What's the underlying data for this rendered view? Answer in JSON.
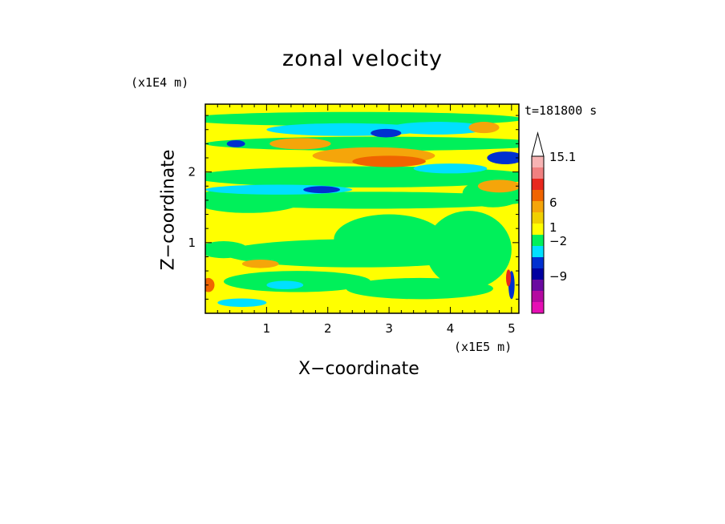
{
  "chart_data": {
    "type": "heatmap",
    "title": "zonal velocity",
    "xlabel": "X−coordinate",
    "ylabel": "Z−coordinate",
    "x_unit_label": "(x1E5 m)",
    "y_unit_label": "(x1E4 m)",
    "time_label": "t=181800 s",
    "xlim": [
      0,
      5.12
    ],
    "ylim": [
      0,
      2.96
    ],
    "x_ticks": [
      "1",
      "2",
      "3",
      "4",
      "5"
    ],
    "y_ticks": [
      "1",
      "2"
    ],
    "colorbar": {
      "labels": [
        "15.1",
        "6",
        "1",
        "−2",
        "−9"
      ],
      "colors": [
        "#f7b3b3",
        "#f08080",
        "#e8281e",
        "#f06400",
        "#f5a50a",
        "#f0d000",
        "#ffff00",
        "#00f05a",
        "#00e0ff",
        "#0030d0",
        "#0000a0",
        "#6a0aa0",
        "#b40aa0",
        "#e60fb4"
      ],
      "extend": "max"
    },
    "fields": {
      "background_level": "yellow (~0 to 1)",
      "dominant_features": [
        "orange band near z=2.2 across mid-x",
        "green band near z=1.9",
        "dark blue patches near z=2.5 and z=1.7",
        "cyan band near z=2.6",
        "red/dark-blue streak near x=5, z=0.4"
      ]
    }
  }
}
